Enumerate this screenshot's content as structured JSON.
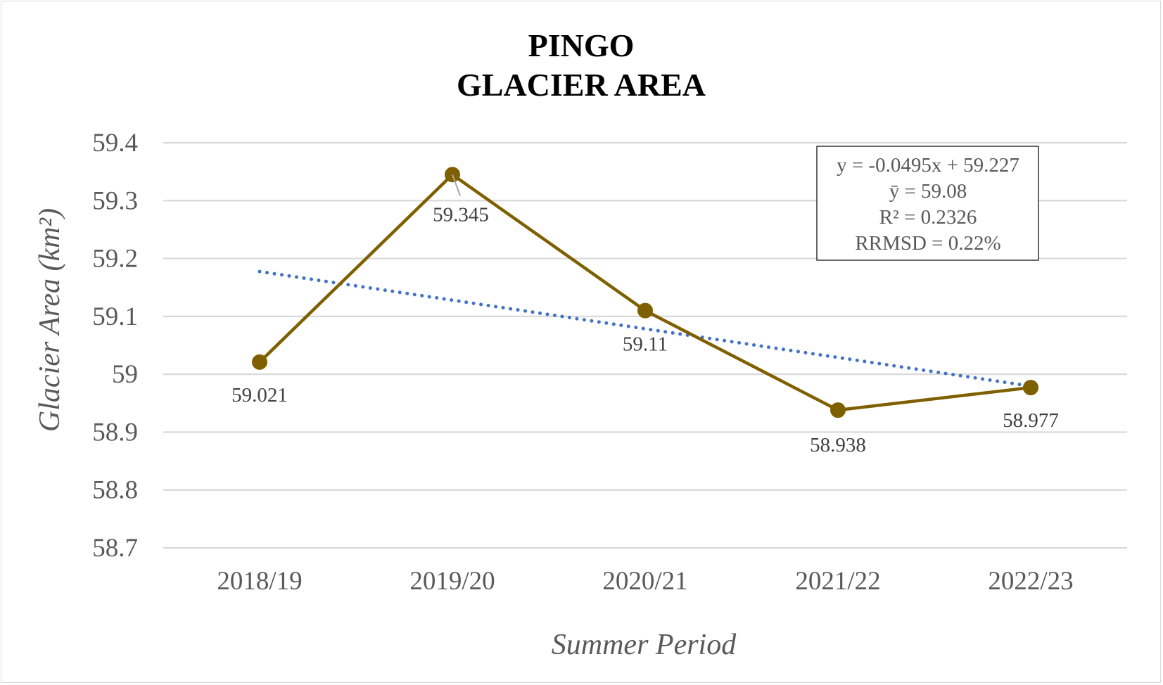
{
  "chart_data": {
    "type": "line",
    "title_line1": "PINGO",
    "title_line2": "GLACIER AREA",
    "xlabel": "Summer Period",
    "ylabel": "Glacier Area (km²)",
    "categories": [
      "2018/19",
      "2019/20",
      "2020/21",
      "2021/22",
      "2022/23"
    ],
    "series": [
      {
        "values": [
          59.021,
          59.345,
          59.11,
          58.938,
          58.977
        ],
        "data_labels": [
          "59.021",
          "59.345",
          "59.11",
          "58.938",
          "58.977"
        ],
        "color": "#7f6000",
        "marker": "circle"
      }
    ],
    "trendline": {
      "type": "linear",
      "slope": -0.0495,
      "intercept": 59.227,
      "color": "#4472c4",
      "style": "dotted"
    },
    "y_ticks": [
      "59.4",
      "59.3",
      "59.2",
      "59.1",
      "59",
      "58.9",
      "58.8",
      "58.7"
    ],
    "ylim": [
      58.7,
      59.4
    ],
    "grid": true,
    "stats_box": {
      "equation": "y = -0.0495x + 59.227",
      "mean": "ȳ = 59.08",
      "r2": "R² = 0.2326",
      "rrmsd": "RRMSD = 0.22%"
    }
  }
}
